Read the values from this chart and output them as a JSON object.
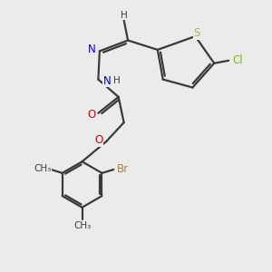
{
  "bg_color": "#ebebeb",
  "bond_color": "#3a3a3a",
  "atom_colors": {
    "N": "#0000cc",
    "O": "#cc0000",
    "S": "#bbbb00",
    "Cl": "#77bb00",
    "Br": "#cc7722",
    "C": "#3a3a3a",
    "H": "#3a3a3a"
  },
  "lw": 1.6,
  "fs": 8.5,
  "fs_small": 7.5
}
